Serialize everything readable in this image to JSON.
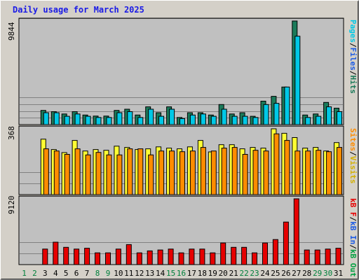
{
  "title": "Daily usage for March 2025",
  "colors": {
    "background": "#d4d0c8",
    "plot_background": "#c0c0c0",
    "grid": "#808080",
    "hits": "#1b7a5a",
    "files": "#00c8e6",
    "pages": "#00c8e6",
    "visits": "#ffff33",
    "sites": "#ff8c00",
    "kbytes": "#e60000",
    "weekend_label": "#00803c",
    "weekday_label": "#000000"
  },
  "legend": {
    "top": {
      "pages": "Pages",
      "files": "Files",
      "hits": "Hits"
    },
    "middle": {
      "sites": "Sites",
      "visits": "Visits"
    },
    "bottom": {
      "kb_f": "kB F",
      "kb_in": "kB In",
      "kb_out": "kB Out"
    },
    "separator": "/"
  },
  "chart_data": [
    {
      "type": "bar",
      "panel": "top",
      "ymax_label": "9844",
      "ylim": [
        0,
        9844
      ],
      "categories": [
        "1",
        "2",
        "3",
        "4",
        "5",
        "6",
        "7",
        "8",
        "9",
        "10",
        "11",
        "12",
        "13",
        "14",
        "15",
        "16",
        "17",
        "18",
        "19",
        "20",
        "21",
        "22",
        "23",
        "24",
        "25",
        "26",
        "27",
        "28",
        "29",
        "30",
        "31"
      ],
      "series": [
        {
          "name": "Hits",
          "values": [
            0,
            0,
            1350,
            1230,
            1010,
            1230,
            910,
            810,
            810,
            1350,
            1460,
            910,
            1690,
            1130,
            1690,
            680,
            1130,
            1130,
            910,
            1910,
            1010,
            1130,
            790,
            2230,
            2690,
            3570,
            9844,
            910,
            1010,
            2110,
            1560
          ]
        },
        {
          "name": "Files",
          "values": [
            0,
            0,
            1130,
            1130,
            790,
            1010,
            790,
            680,
            680,
            1130,
            1230,
            680,
            1460,
            790,
            1460,
            570,
            910,
            1010,
            790,
            1460,
            790,
            790,
            680,
            1910,
            2020,
            3570,
            8400,
            680,
            790,
            1690,
            1230
          ]
        }
      ]
    },
    {
      "type": "bar",
      "panel": "middle",
      "ymax_label": "368",
      "ylim": [
        0,
        368
      ],
      "categories": [
        "1",
        "2",
        "3",
        "4",
        "5",
        "6",
        "7",
        "8",
        "9",
        "10",
        "11",
        "12",
        "13",
        "14",
        "15",
        "16",
        "17",
        "18",
        "19",
        "20",
        "21",
        "22",
        "23",
        "24",
        "25",
        "26",
        "27",
        "28",
        "29",
        "30",
        "31"
      ],
      "series": [
        {
          "name": "Visits",
          "values": [
            0,
            0,
            310,
            252,
            235,
            303,
            244,
            252,
            248,
            271,
            264,
            252,
            256,
            267,
            260,
            256,
            267,
            303,
            239,
            279,
            279,
            256,
            264,
            260,
            368,
            343,
            319,
            260,
            264,
            244,
            291
          ]
        },
        {
          "name": "Sites",
          "values": [
            0,
            0,
            256,
            244,
            225,
            256,
            222,
            236,
            222,
            222,
            256,
            256,
            222,
            244,
            244,
            240,
            244,
            264,
            244,
            260,
            264,
            225,
            248,
            244,
            340,
            303,
            244,
            244,
            248,
            240,
            264
          ]
        }
      ]
    },
    {
      "type": "bar",
      "panel": "bottom",
      "ymax_label": "9120",
      "ylim": [
        0,
        9120
      ],
      "categories": [
        "1",
        "2",
        "3",
        "4",
        "5",
        "6",
        "7",
        "8",
        "9",
        "10",
        "11",
        "12",
        "13",
        "14",
        "15",
        "16",
        "17",
        "18",
        "19",
        "20",
        "21",
        "22",
        "23",
        "24",
        "25",
        "26",
        "27",
        "28",
        "29",
        "30",
        "31"
      ],
      "series": [
        {
          "name": "kB F",
          "values": [
            0,
            0,
            2150,
            3100,
            2400,
            2150,
            2270,
            1630,
            1630,
            2150,
            2770,
            1630,
            1900,
            2030,
            2150,
            1630,
            2150,
            2150,
            1630,
            3000,
            2400,
            2400,
            1630,
            3000,
            3470,
            5900,
            9120,
            2030,
            2030,
            2150,
            2270
          ]
        }
      ]
    }
  ],
  "weekend_days": [
    "1",
    "2",
    "8",
    "9",
    "15",
    "16",
    "22",
    "23",
    "29",
    "30"
  ]
}
